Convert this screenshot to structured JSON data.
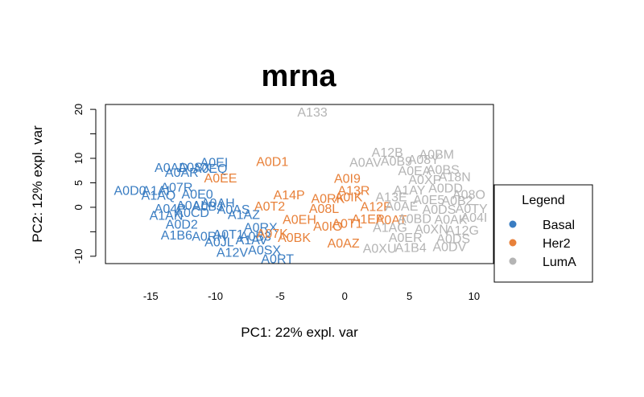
{
  "chart_data": {
    "type": "scatter",
    "title": "mrna",
    "xlabel": "PC1: 22% expl. var",
    "ylabel": "PC2: 12% expl. var",
    "xlim": [
      -18.5,
      11.5
    ],
    "ylim": [
      -11.5,
      21
    ],
    "xticks": [
      -15,
      -10,
      -5,
      0,
      5,
      10
    ],
    "yticks": [
      -10,
      0,
      5,
      10,
      20
    ],
    "grid": false,
    "legend": {
      "title": "Legend",
      "placement": "right",
      "entries": [
        {
          "name": "Basal",
          "color": "#3a7dc2"
        },
        {
          "name": "Her2",
          "color": "#e8813a"
        },
        {
          "name": "LumA",
          "color": "#b4b4b4"
        }
      ]
    },
    "series": [
      {
        "name": "Basal",
        "color": "#3a7dc2",
        "points": [
          {
            "x": -13.4,
            "y": 8.2,
            "label": "A0AD"
          },
          {
            "x": -10.1,
            "y": 9.3,
            "label": "A0EI"
          },
          {
            "x": -10.4,
            "y": 8.0,
            "label": "A0EQ"
          },
          {
            "x": -12.6,
            "y": 7.2,
            "label": "A0AR"
          },
          {
            "x": -11.6,
            "y": 8.3,
            "label": "A0SX"
          },
          {
            "x": -16.6,
            "y": 3.5,
            "label": "A0D0"
          },
          {
            "x": -14.6,
            "y": 3.5,
            "label": "A1AI"
          },
          {
            "x": -14.4,
            "y": 2.5,
            "label": "A1AQ"
          },
          {
            "x": -13.0,
            "y": 4.2,
            "label": "A07R"
          },
          {
            "x": -11.4,
            "y": 2.8,
            "label": "A0E0"
          },
          {
            "x": -13.5,
            "y": -0.2,
            "label": "A04P"
          },
          {
            "x": -13.8,
            "y": -1.6,
            "label": "A1AN"
          },
          {
            "x": -11.8,
            "y": 0.5,
            "label": "A0AL"
          },
          {
            "x": -10.6,
            "y": 0.3,
            "label": "A0BJ"
          },
          {
            "x": -11.8,
            "y": -1.0,
            "label": "A0CD"
          },
          {
            "x": -9.8,
            "y": 1.0,
            "label": "A0AH"
          },
          {
            "x": -12.6,
            "y": -3.4,
            "label": "A0D2"
          },
          {
            "x": -13.0,
            "y": -5.6,
            "label": "A1B6"
          },
          {
            "x": -10.5,
            "y": -5.8,
            "label": "A0RH"
          },
          {
            "x": -9.0,
            "y": -5.4,
            "label": "A0T1"
          },
          {
            "x": -8.6,
            "y": -0.3,
            "label": "A0AS"
          },
          {
            "x": -7.8,
            "y": -1.4,
            "label": "A1AZ"
          },
          {
            "x": -6.9,
            "y": -5.8,
            "label": "A0B3"
          },
          {
            "x": -9.7,
            "y": -7.0,
            "label": "A0JL"
          },
          {
            "x": -8.7,
            "y": -9.1,
            "label": "A12V"
          },
          {
            "x": -6.2,
            "y": -8.6,
            "label": "A0SX"
          },
          {
            "x": -5.2,
            "y": -10.4,
            "label": "A0RT"
          },
          {
            "x": -6.5,
            "y": -4.0,
            "label": "A0RX"
          },
          {
            "x": -7.2,
            "y": -6.6,
            "label": "A1AV"
          }
        ]
      },
      {
        "name": "Her2",
        "color": "#e8813a",
        "points": [
          {
            "x": -5.6,
            "y": 9.4,
            "label": "A0D1"
          },
          {
            "x": -9.6,
            "y": 6.1,
            "label": "A0EE"
          },
          {
            "x": 0.2,
            "y": 6.0,
            "label": "A0I9"
          },
          {
            "x": -4.3,
            "y": 2.6,
            "label": "A14P"
          },
          {
            "x": 0.7,
            "y": 3.5,
            "label": "A13R"
          },
          {
            "x": -1.3,
            "y": 1.9,
            "label": "A0RK"
          },
          {
            "x": 0.3,
            "y": 2.2,
            "label": "A0IK"
          },
          {
            "x": -5.8,
            "y": 0.3,
            "label": "A0T2"
          },
          {
            "x": -1.6,
            "y": -0.2,
            "label": "A08L"
          },
          {
            "x": 2.4,
            "y": 0.2,
            "label": "A12F"
          },
          {
            "x": -3.5,
            "y": -2.4,
            "label": "A0EH"
          },
          {
            "x": -1.3,
            "y": -3.8,
            "label": "A0IO"
          },
          {
            "x": 0.2,
            "y": -3.2,
            "label": "A0T1"
          },
          {
            "x": 1.8,
            "y": -2.3,
            "label": "A1EP"
          },
          {
            "x": 3.6,
            "y": -2.5,
            "label": "A0AT"
          },
          {
            "x": -0.1,
            "y": -7.2,
            "label": "A0AZ"
          },
          {
            "x": -5.6,
            "y": -5.3,
            "label": "A07K"
          },
          {
            "x": -3.9,
            "y": -6.1,
            "label": "A0BK"
          }
        ]
      },
      {
        "name": "LumA",
        "color": "#b4b4b4",
        "points": [
          {
            "x": -2.5,
            "y": 19.5,
            "label": "A133"
          },
          {
            "x": 3.3,
            "y": 11.3,
            "label": "A12B"
          },
          {
            "x": 7.1,
            "y": 10.9,
            "label": "A0BM"
          },
          {
            "x": 1.6,
            "y": 9.3,
            "label": "A0AV"
          },
          {
            "x": 4.0,
            "y": 9.5,
            "label": "A0B9"
          },
          {
            "x": 6.1,
            "y": 9.8,
            "label": "A08Y"
          },
          {
            "x": 5.4,
            "y": 7.5,
            "label": "A0EA"
          },
          {
            "x": 7.6,
            "y": 7.8,
            "label": "A0BS"
          },
          {
            "x": 8.5,
            "y": 6.3,
            "label": "A18N"
          },
          {
            "x": 6.2,
            "y": 5.7,
            "label": "A0XP"
          },
          {
            "x": 5.0,
            "y": 3.6,
            "label": "A1AY"
          },
          {
            "x": 7.8,
            "y": 4.0,
            "label": "A0DD"
          },
          {
            "x": 9.6,
            "y": 2.7,
            "label": "A08O"
          },
          {
            "x": 3.6,
            "y": 2.2,
            "label": "A13E"
          },
          {
            "x": 6.5,
            "y": 1.6,
            "label": "A0E5"
          },
          {
            "x": 8.7,
            "y": 1.5,
            "label": "A0B2"
          },
          {
            "x": 4.4,
            "y": 0.3,
            "label": "A0AE"
          },
          {
            "x": 7.3,
            "y": -0.3,
            "label": "A0DS"
          },
          {
            "x": 9.8,
            "y": -0.2,
            "label": "A0TY"
          },
          {
            "x": 5.4,
            "y": -2.2,
            "label": "A0BD"
          },
          {
            "x": 8.2,
            "y": -2.4,
            "label": "A0AK"
          },
          {
            "x": 10.0,
            "y": -2.0,
            "label": "A04I"
          },
          {
            "x": 3.5,
            "y": -4.0,
            "label": "A1AG"
          },
          {
            "x": 6.7,
            "y": -4.4,
            "label": "A0XN"
          },
          {
            "x": 9.1,
            "y": -4.6,
            "label": "A12G"
          },
          {
            "x": 4.7,
            "y": -6.1,
            "label": "A0ER"
          },
          {
            "x": 8.4,
            "y": -6.3,
            "label": "A0DS"
          },
          {
            "x": 2.7,
            "y": -8.3,
            "label": "A0XU"
          },
          {
            "x": 5.1,
            "y": -8.1,
            "label": "A1B4"
          },
          {
            "x": 8.1,
            "y": -8.0,
            "label": "A0DV"
          }
        ]
      }
    ]
  }
}
